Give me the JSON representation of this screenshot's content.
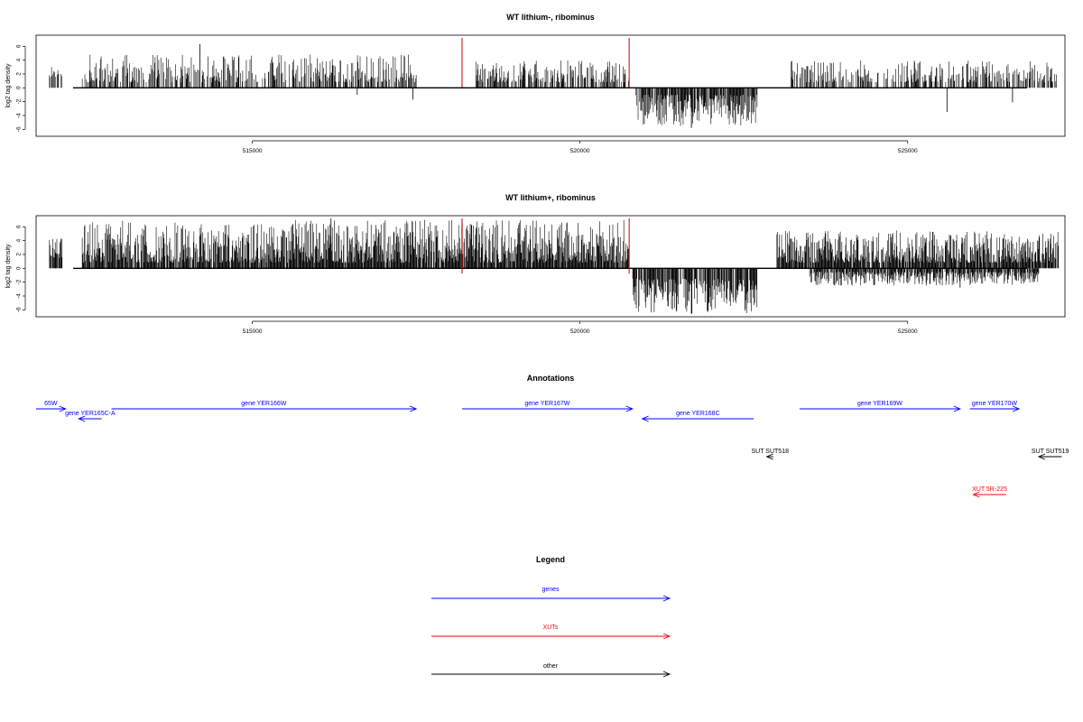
{
  "tracks": [
    {
      "title": "WT lithium-, ribominus",
      "ylabel": "log2 tag density",
      "seed": 11,
      "posDensity": 0.55,
      "posScale": 0.85
    },
    {
      "title": "WT lithium+, ribominus",
      "ylabel": "log2 tag density",
      "seed": 29,
      "posDensity": 0.9,
      "posScale": 1.0
    }
  ],
  "annotations_title": "Annotations",
  "legend_title": "Legend",
  "legend": [
    {
      "label": "genes",
      "color": "#0000ff"
    },
    {
      "label": "XUTs",
      "color": "#ff0000"
    },
    {
      "label": "other",
      "color": "#000000"
    }
  ],
  "colors": {
    "genes": "#0000ff",
    "xut": "#ff0000",
    "other": "#000000",
    "marker": "#cc0000"
  },
  "chart_data": [
    {
      "type": "bar",
      "title": "WT lithium-, ribominus",
      "xlabel": "",
      "ylabel": "log2 tag density",
      "xlim": [
        511700,
        527400
      ],
      "ylim": [
        -7,
        7.6
      ],
      "xticks": [
        515000,
        520000,
        525000
      ],
      "yticks": [
        -6,
        -4,
        -2,
        0,
        2,
        4,
        6
      ],
      "markers": [
        518200,
        520750
      ],
      "regions": [
        {
          "from": 511900,
          "to": 512100,
          "sign": 1,
          "min": 1.5,
          "max": 4.5
        },
        {
          "from": 512400,
          "to": 517500,
          "sign": 1,
          "min": 0.8,
          "max": 5.5
        },
        {
          "from": 518400,
          "to": 520750,
          "sign": 1,
          "min": 0.8,
          "max": 4.5
        },
        {
          "from": 520850,
          "to": 522700,
          "sign": -1,
          "min": 1.0,
          "max": 5.5
        },
        {
          "from": 523200,
          "to": 527300,
          "sign": 1,
          "min": 0.8,
          "max": 4.5
        }
      ],
      "notable_bars": [
        {
          "x": 514200,
          "y": 6.3
        },
        {
          "x": 516600,
          "y": -1.0
        },
        {
          "x": 517450,
          "y": -1.7
        },
        {
          "x": 521700,
          "y": -5.8
        },
        {
          "x": 525600,
          "y": -3.5
        },
        {
          "x": 526600,
          "y": -2.1
        }
      ]
    },
    {
      "type": "bar",
      "title": "WT lithium+, ribominus",
      "xlabel": "",
      "ylabel": "log2 tag density",
      "xlim": [
        511700,
        527400
      ],
      "ylim": [
        -7,
        7.6
      ],
      "xticks": [
        515000,
        520000,
        525000
      ],
      "yticks": [
        -6,
        -4,
        -2,
        0,
        2,
        4,
        6
      ],
      "markers": [
        518200,
        520750
      ],
      "regions": [
        {
          "from": 511900,
          "to": 512100,
          "sign": 1,
          "min": 1.5,
          "max": 4.5
        },
        {
          "from": 512400,
          "to": 520750,
          "sign": 1,
          "min": 0.8,
          "max": 7.0
        },
        {
          "from": 520800,
          "to": 522700,
          "sign": -1,
          "min": 1.5,
          "max": 6.5
        },
        {
          "from": 523000,
          "to": 527300,
          "sign": 1,
          "min": 0.8,
          "max": 5.5
        },
        {
          "from": 523500,
          "to": 527000,
          "sign": -1,
          "min": 0.5,
          "max": 2.5
        }
      ],
      "notable_bars": [
        {
          "x": 516200,
          "y": 7.2
        },
        {
          "x": 521700,
          "y": -6.6
        },
        {
          "x": 525800,
          "y": -2.8
        }
      ]
    },
    {
      "type": "annotation",
      "title": "Annotations",
      "features": [
        {
          "label": "65W",
          "start": 511700,
          "end": 512150,
          "strand": "+",
          "class": "genes",
          "row": 0
        },
        {
          "label": "gene YER165C-A",
          "start": 512350,
          "end": 512700,
          "strand": "-",
          "class": "genes",
          "row": 1
        },
        {
          "label": "gene YER166W",
          "start": 512850,
          "end": 517500,
          "strand": "+",
          "class": "genes",
          "row": 0
        },
        {
          "label": "gene YER167W",
          "start": 518200,
          "end": 520800,
          "strand": "+",
          "class": "genes",
          "row": 0
        },
        {
          "label": "gene YER168C",
          "start": 520950,
          "end": 522650,
          "strand": "-",
          "class": "genes",
          "row": 1
        },
        {
          "label": "gene YER169W",
          "start": 523350,
          "end": 525800,
          "strand": "+",
          "class": "genes",
          "row": 0
        },
        {
          "label": "gene YER170W",
          "start": 525950,
          "end": 526700,
          "strand": "+",
          "class": "genes",
          "row": 0
        },
        {
          "label": "SUT SUT518",
          "start": 522850,
          "end": 522950,
          "strand": "-",
          "class": "other",
          "row": 2
        },
        {
          "label": "SUT SUT519",
          "start": 527000,
          "end": 527350,
          "strand": "-",
          "class": "other",
          "row": 2
        },
        {
          "label": "XUT 5R-225",
          "start": 526000,
          "end": 526500,
          "strand": "-",
          "class": "xut",
          "row": 3
        }
      ]
    }
  ]
}
